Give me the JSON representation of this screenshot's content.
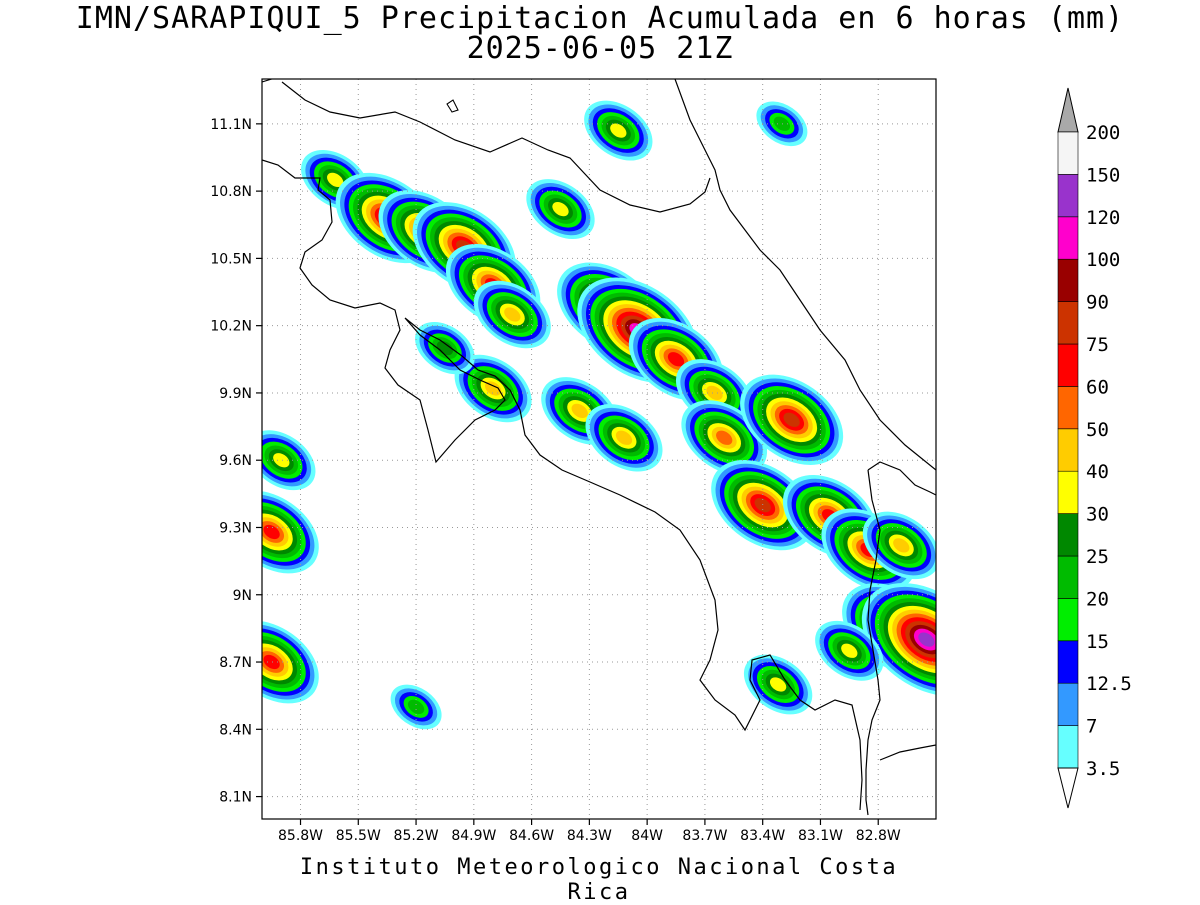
{
  "title": "IMN/SARAPIQUI_5 Precipitacion Acumulada en 6 horas (mm)",
  "subtitle": "2025-06-05 21Z",
  "credit": "Instituto Meteorologico Nacional Costa Rica",
  "map": {
    "lon_range": [
      -86.0,
      -82.5
    ],
    "lat_range": [
      8.0,
      11.3
    ],
    "x_ticks": [
      "85.8W",
      "85.5W",
      "85.2W",
      "84.9W",
      "84.6W",
      "84.3W",
      "84W",
      "83.7W",
      "83.4W",
      "83.1W",
      "82.8W"
    ],
    "x_tick_values": [
      -85.8,
      -85.5,
      -85.2,
      -84.9,
      -84.6,
      -84.3,
      -84.0,
      -83.7,
      -83.4,
      -83.1,
      -82.8
    ],
    "y_ticks": [
      "11.1N",
      "10.8N",
      "10.5N",
      "10.2N",
      "9.9N",
      "9.6N",
      "9.3N",
      "9N",
      "8.7N",
      "8.4N",
      "8.1N"
    ],
    "y_tick_values": [
      11.1,
      10.8,
      10.5,
      10.2,
      9.9,
      9.6,
      9.3,
      9.0,
      8.7,
      8.4,
      8.1
    ],
    "grid": true
  },
  "colorbar": {
    "labels": [
      "3.5",
      "7",
      "12.5",
      "15",
      "20",
      "25",
      "30",
      "40",
      "50",
      "60",
      "75",
      "90",
      "100",
      "120",
      "150",
      "200"
    ],
    "colors": [
      "#66ffff",
      "#3399ff",
      "#0000ff",
      "#00ee00",
      "#00bb00",
      "#008800",
      "#ffff00",
      "#ffcc00",
      "#ff6600",
      "#ff0000",
      "#cc3300",
      "#990000",
      "#ff00cc",
      "#9933cc",
      "#f5f5f5",
      "#a9a9a9"
    ],
    "band_colors": [
      "#66ffff",
      "#3399ff",
      "#0000ff",
      "#00ee00",
      "#00bb00",
      "#008800",
      "#ffff00",
      "#ffcc00",
      "#ff6600",
      "#ff0000",
      "#cc3300",
      "#990000",
      "#ff00cc",
      "#9933cc",
      "#f5f5f5"
    ],
    "upper_arrow_color": "#a9a9a9",
    "lower_arrow_color": "#ffffff"
  },
  "precip_cells": [
    {
      "lon": -85.62,
      "lat": 10.85,
      "level": 6
    },
    {
      "lon": -85.35,
      "lat": 10.68,
      "level": 10
    },
    {
      "lon": -85.15,
      "lat": 10.62,
      "level": 9
    },
    {
      "lon": -84.95,
      "lat": 10.55,
      "level": 10
    },
    {
      "lon": -84.8,
      "lat": 10.38,
      "level": 9
    },
    {
      "lon": -84.7,
      "lat": 10.25,
      "level": 7
    },
    {
      "lon": -84.45,
      "lat": 10.72,
      "level": 6
    },
    {
      "lon": -84.2,
      "lat": 10.28,
      "level": 10
    },
    {
      "lon": -84.05,
      "lat": 10.18,
      "level": 12
    },
    {
      "lon": -83.85,
      "lat": 10.05,
      "level": 9
    },
    {
      "lon": -83.65,
      "lat": 9.9,
      "level": 7
    },
    {
      "lon": -84.35,
      "lat": 9.82,
      "level": 7
    },
    {
      "lon": -84.12,
      "lat": 9.7,
      "level": 7
    },
    {
      "lon": -83.6,
      "lat": 9.7,
      "level": 8
    },
    {
      "lon": -83.25,
      "lat": 9.78,
      "level": 10
    },
    {
      "lon": -83.4,
      "lat": 9.4,
      "level": 10
    },
    {
      "lon": -83.05,
      "lat": 9.35,
      "level": 9
    },
    {
      "lon": -82.85,
      "lat": 9.2,
      "level": 9
    },
    {
      "lon": -82.68,
      "lat": 9.22,
      "level": 7
    },
    {
      "lon": -82.72,
      "lat": 8.85,
      "level": 10
    },
    {
      "lon": -82.55,
      "lat": 8.8,
      "level": 13
    },
    {
      "lon": -82.95,
      "lat": 8.75,
      "level": 6
    },
    {
      "lon": -84.8,
      "lat": 9.92,
      "level": 7
    },
    {
      "lon": -85.05,
      "lat": 10.1,
      "level": 5
    },
    {
      "lon": -85.9,
      "lat": 9.6,
      "level": 6
    },
    {
      "lon": -85.95,
      "lat": 9.28,
      "level": 9
    },
    {
      "lon": -85.95,
      "lat": 8.7,
      "level": 9
    },
    {
      "lon": -85.2,
      "lat": 8.5,
      "level": 4
    },
    {
      "lon": -84.15,
      "lat": 11.07,
      "level": 6
    },
    {
      "lon": -83.3,
      "lat": 11.1,
      "level": 4
    },
    {
      "lon": -83.32,
      "lat": 8.6,
      "level": 6
    }
  ]
}
